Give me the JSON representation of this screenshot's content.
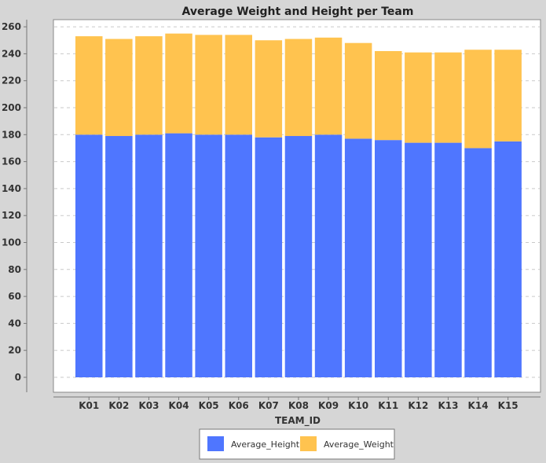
{
  "chart_data": {
    "type": "bar",
    "stacked": true,
    "title": "Average Weight and Height per Team",
    "xlabel": "TEAM_ID",
    "ylabel": "",
    "categories": [
      "K01",
      "K02",
      "K03",
      "K04",
      "K05",
      "K06",
      "K07",
      "K08",
      "K09",
      "K10",
      "K11",
      "K12",
      "K13",
      "K14",
      "K15"
    ],
    "series": [
      {
        "name": "Average_Height",
        "color": "#4f76ff",
        "values": [
          180,
          179,
          180,
          181,
          180,
          180,
          178,
          179,
          180,
          177,
          176,
          174,
          174,
          170,
          175
        ]
      },
      {
        "name": "Average_Weight",
        "color": "#ffc34f",
        "values": [
          73,
          72,
          73,
          74,
          74,
          74,
          72,
          72,
          72,
          71,
          66,
          67,
          67,
          73,
          68
        ]
      }
    ],
    "ylim": [
      0,
      265
    ],
    "yticks": [
      0,
      20,
      40,
      60,
      80,
      100,
      120,
      140,
      160,
      180,
      200,
      220,
      240,
      260
    ],
    "grid": true,
    "legend_position": "bottom"
  }
}
